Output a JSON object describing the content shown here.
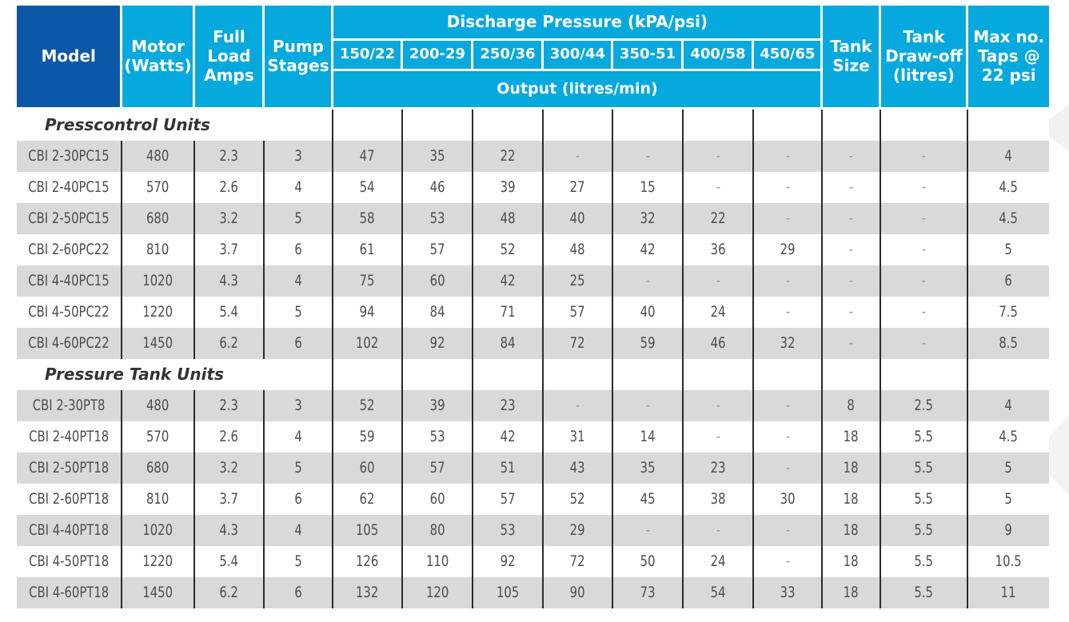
{
  "colors": {
    "header_cyan": "#06a9dd",
    "header_blue": "#0c58a8",
    "row_grey": "#d9d9d9"
  },
  "header": {
    "model": "Model",
    "motor": "Motor (Watts)",
    "amps": "Full Load Amps",
    "stages": "Pump Stages",
    "discharge": "Discharge Pressure (kPA/psi)",
    "pressures": [
      "150/22",
      "200-29",
      "250/36",
      "300/44",
      "350-51",
      "400/58",
      "450/65"
    ],
    "output": "Output (litres/min)",
    "tank_size": "Tank Size",
    "drawoff": "Tank Draw-off (litres)",
    "taps": "Max no. Taps @ 22 psi"
  },
  "sections": [
    {
      "title": "Presscontrol Units",
      "rows": [
        [
          "CBI 2-30PC15",
          "480",
          "2.3",
          "3",
          "47",
          "35",
          "22",
          "-",
          "-",
          "-",
          "-",
          "-",
          "-",
          "4"
        ],
        [
          "CBI 2-40PC15",
          "570",
          "2.6",
          "4",
          "54",
          "46",
          "39",
          "27",
          "15",
          "-",
          "-",
          "-",
          "-",
          "4.5"
        ],
        [
          "CBI 2-50PC15",
          "680",
          "3.2",
          "5",
          "58",
          "53",
          "48",
          "40",
          "32",
          "22",
          "-",
          "-",
          "-",
          "4.5"
        ],
        [
          "CBI 2-60PC22",
          "810",
          "3.7",
          "6",
          "61",
          "57",
          "52",
          "48",
          "42",
          "36",
          "29",
          "-",
          "-",
          "5"
        ],
        [
          "CBI 4-40PC15",
          "1020",
          "4.3",
          "4",
          "75",
          "60",
          "42",
          "25",
          "-",
          "-",
          "-",
          "-",
          "-",
          "6"
        ],
        [
          "CBI 4-50PC22",
          "1220",
          "5.4",
          "5",
          "94",
          "84",
          "71",
          "57",
          "40",
          "24",
          "-",
          "-",
          "-",
          "7.5"
        ],
        [
          "CBI 4-60PC22",
          "1450",
          "6.2",
          "6",
          "102",
          "92",
          "84",
          "72",
          "59",
          "46",
          "32",
          "-",
          "-",
          "8.5"
        ]
      ]
    },
    {
      "title": "Pressure Tank Units",
      "rows": [
        [
          "CBI 2-30PT8",
          "480",
          "2.3",
          "3",
          "52",
          "39",
          "23",
          "-",
          "-",
          "-",
          "-",
          "8",
          "2.5",
          "4"
        ],
        [
          "CBI 2-40PT18",
          "570",
          "2.6",
          "4",
          "59",
          "53",
          "42",
          "31",
          "14",
          "-",
          "-",
          "18",
          "5.5",
          "4.5"
        ],
        [
          "CBI 2-50PT18",
          "680",
          "3.2",
          "5",
          "60",
          "57",
          "51",
          "43",
          "35",
          "23",
          "-",
          "18",
          "5.5",
          "5"
        ],
        [
          "CBI 2-60PT18",
          "810",
          "3.7",
          "6",
          "62",
          "60",
          "57",
          "52",
          "45",
          "38",
          "30",
          "18",
          "5.5",
          "5"
        ],
        [
          "CBI 4-40PT18",
          "1020",
          "4.3",
          "4",
          "105",
          "80",
          "53",
          "29",
          "-",
          "-",
          "-",
          "18",
          "5.5",
          "9"
        ],
        [
          "CBI 4-50PT18",
          "1220",
          "5.4",
          "5",
          "126",
          "110",
          "92",
          "72",
          "50",
          "24",
          "-",
          "18",
          "5.5",
          "10.5"
        ],
        [
          "CBI 4-60PT18",
          "1450",
          "6.2",
          "6",
          "132",
          "120",
          "105",
          "90",
          "73",
          "54",
          "33",
          "18",
          "5.5",
          "11"
        ]
      ]
    }
  ]
}
